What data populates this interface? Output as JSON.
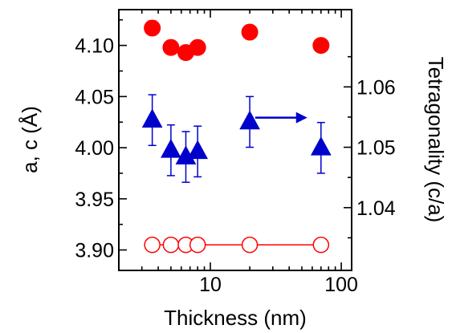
{
  "chart_data": {
    "type": "scatter",
    "xlabel": "Thickness (nm)",
    "ylabel_left": "a, c (Å)",
    "ylabel_right": "Tetragonality (c/a)",
    "x_scale": "log",
    "xlim": [
      2,
      120
    ],
    "ylim_left": [
      3.88,
      4.135
    ],
    "ylim_right": [
      1.0296,
      1.0728
    ],
    "x_ticks": [
      {
        "value": 10,
        "label": "10"
      },
      {
        "value": 100,
        "label": "100"
      }
    ],
    "y_left_ticks": [
      {
        "value": 3.9,
        "label": "3.90"
      },
      {
        "value": 3.95,
        "label": "3.95"
      },
      {
        "value": 4.0,
        "label": "4.00"
      },
      {
        "value": 4.05,
        "label": "4.05"
      },
      {
        "value": 4.1,
        "label": "4.10"
      }
    ],
    "y_right_ticks": [
      {
        "value": 1.04,
        "label": "1.04"
      },
      {
        "value": 1.05,
        "label": "1.05"
      },
      {
        "value": 1.06,
        "label": "1.06"
      }
    ],
    "grid": false,
    "series": [
      {
        "axis": "left",
        "marker": "filled-circle",
        "color": "#ff0000",
        "line": false,
        "points": [
          {
            "x": 3.6,
            "y": 4.117,
            "err": 0.007
          },
          {
            "x": 5.0,
            "y": 4.098,
            "err": 0.006
          },
          {
            "x": 6.5,
            "y": 4.093,
            "err": 0.006
          },
          {
            "x": 8.0,
            "y": 4.098,
            "err": 0.006
          },
          {
            "x": 20,
            "y": 4.113,
            "err": 0.006
          },
          {
            "x": 70,
            "y": 4.1,
            "err": 0.006
          }
        ]
      },
      {
        "axis": "right",
        "marker": "filled-triangle",
        "color": "#0000cc",
        "line": false,
        "points": [
          {
            "x": 3.6,
            "y": 1.0545,
            "err": 0.0042
          },
          {
            "x": 5.0,
            "y": 1.0495,
            "err": 0.0042
          },
          {
            "x": 6.5,
            "y": 1.0484,
            "err": 0.0042
          },
          {
            "x": 8.0,
            "y": 1.0493,
            "err": 0.0042
          },
          {
            "x": 20,
            "y": 1.0542,
            "err": 0.0042
          },
          {
            "x": 70,
            "y": 1.0499,
            "err": 0.0042
          }
        ]
      },
      {
        "axis": "left",
        "marker": "open-circle",
        "color": "#ff0000",
        "line": true,
        "points": [
          {
            "x": 3.6,
            "y": 3.905,
            "err": 0.005
          },
          {
            "x": 5.0,
            "y": 3.905,
            "err": 0.005
          },
          {
            "x": 6.5,
            "y": 3.905,
            "err": 0.005
          },
          {
            "x": 8.0,
            "y": 3.905,
            "err": 0.005
          },
          {
            "x": 20,
            "y": 3.905,
            "err": 0.005
          },
          {
            "x": 70,
            "y": 3.905,
            "err": 0.005
          }
        ]
      }
    ],
    "annotations": [
      {
        "type": "arrow",
        "direction": "right",
        "color": "#0000cc",
        "from": {
          "x": 22,
          "y": 1.0549
        },
        "to": {
          "x": 55,
          "y": 1.0549
        },
        "axis": "right"
      }
    ]
  }
}
